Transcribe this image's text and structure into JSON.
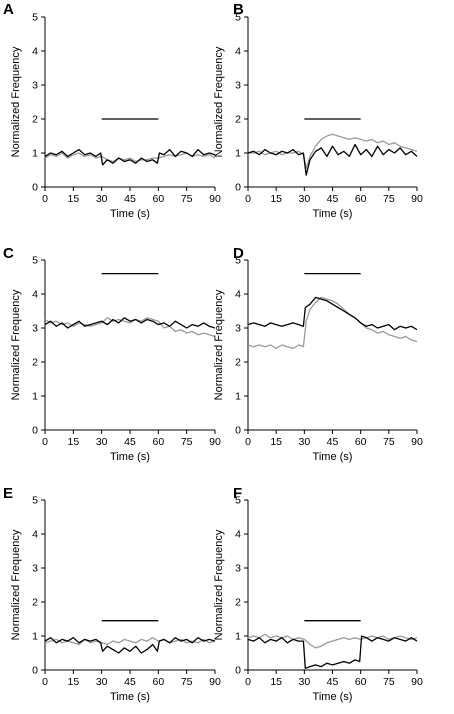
{
  "colors": {
    "black_trace": "#000000",
    "gray_trace": "#9a9a9a",
    "axis": "#000000"
  },
  "chart_data": [
    {
      "type": "line",
      "panel": "A",
      "xlabel": "Time (s)",
      "ylabel": "Normalized Frequency",
      "xlim": [
        0,
        90
      ],
      "ylim": [
        0,
        5
      ],
      "xticks": [
        "0",
        "15",
        "30",
        "45",
        "60",
        "75",
        "90"
      ],
      "yticks": [
        "0",
        "1",
        "2",
        "3",
        "4",
        "5"
      ],
      "stim_bar": {
        "x": [
          30,
          60
        ],
        "y": 2.0
      },
      "series": [
        {
          "color": "black",
          "x": [
            0,
            3,
            6,
            9,
            12,
            15,
            18,
            21,
            24,
            27,
            29.5,
            30.5,
            33,
            36,
            39,
            42,
            45,
            48,
            51,
            54,
            57,
            59.5,
            60.5,
            63,
            66,
            69,
            72,
            75,
            78,
            81,
            84,
            87,
            90
          ],
          "values": [
            0.9,
            1.0,
            0.95,
            1.05,
            0.9,
            1.0,
            1.1,
            0.95,
            1.0,
            0.9,
            1.0,
            0.65,
            0.8,
            0.7,
            0.85,
            0.75,
            0.8,
            0.7,
            0.85,
            0.75,
            0.8,
            0.7,
            1.0,
            0.95,
            1.1,
            0.9,
            1.05,
            1.0,
            0.9,
            1.1,
            0.95,
            1.0,
            0.95
          ]
        },
        {
          "color": "gray",
          "x": [
            0,
            3,
            6,
            9,
            12,
            15,
            18,
            21,
            24,
            27,
            30,
            33,
            36,
            39,
            42,
            45,
            48,
            51,
            54,
            57,
            60,
            63,
            66,
            69,
            72,
            75,
            78,
            81,
            84,
            87,
            90
          ],
          "values": [
            0.85,
            0.95,
            0.9,
            1.0,
            0.85,
            0.95,
            1.0,
            0.9,
            0.95,
            0.85,
            0.9,
            0.8,
            0.75,
            0.85,
            0.8,
            0.85,
            0.75,
            0.8,
            0.8,
            0.85,
            0.85,
            0.9,
            0.95,
            0.9,
            0.95,
            1.0,
            0.9,
            0.95,
            0.9,
            0.95,
            0.85
          ]
        }
      ]
    },
    {
      "type": "line",
      "panel": "B",
      "xlabel": "Time (s)",
      "ylabel": "Normalized Frequency",
      "xlim": [
        0,
        90
      ],
      "ylim": [
        0,
        5
      ],
      "xticks": [
        "0",
        "15",
        "30",
        "45",
        "60",
        "75",
        "90"
      ],
      "yticks": [
        "0",
        "1",
        "2",
        "3",
        "4",
        "5"
      ],
      "stim_bar": {
        "x": [
          30,
          60
        ],
        "y": 2.0
      },
      "series": [
        {
          "color": "black",
          "x": [
            0,
            3,
            6,
            9,
            12,
            15,
            18,
            21,
            24,
            27,
            29.5,
            31,
            33,
            36,
            39,
            42,
            45,
            48,
            51,
            54,
            57,
            60,
            63,
            66,
            69,
            72,
            75,
            78,
            81,
            84,
            87,
            90
          ],
          "values": [
            1.0,
            1.05,
            0.95,
            1.1,
            1.0,
            0.95,
            1.05,
            1.0,
            1.1,
            0.95,
            1.0,
            0.35,
            0.8,
            1.05,
            1.15,
            0.9,
            1.2,
            0.95,
            1.05,
            0.9,
            1.25,
            0.95,
            1.1,
            0.9,
            1.2,
            0.95,
            1.1,
            1.0,
            1.15,
            0.95,
            1.05,
            0.9
          ]
        },
        {
          "color": "gray",
          "x": [
            0,
            3,
            6,
            9,
            12,
            15,
            18,
            21,
            24,
            27,
            29.5,
            31,
            33,
            36,
            39,
            42,
            45,
            48,
            51,
            54,
            57,
            60,
            63,
            66,
            69,
            72,
            75,
            78,
            81,
            84,
            87,
            90
          ],
          "values": [
            1.0,
            1.0,
            1.05,
            0.95,
            1.0,
            1.05,
            0.95,
            1.0,
            1.0,
            1.05,
            0.95,
            0.55,
            0.9,
            1.2,
            1.4,
            1.5,
            1.55,
            1.5,
            1.45,
            1.4,
            1.45,
            1.4,
            1.35,
            1.4,
            1.3,
            1.35,
            1.25,
            1.3,
            1.2,
            1.15,
            1.1,
            1.05
          ]
        }
      ]
    },
    {
      "type": "line",
      "panel": "C",
      "xlabel": "Time (s)",
      "ylabel": "Normalized Frequency",
      "xlim": [
        0,
        90
      ],
      "ylim": [
        0,
        5
      ],
      "xticks": [
        "0",
        "15",
        "30",
        "45",
        "60",
        "75",
        "90"
      ],
      "yticks": [
        "0",
        "1",
        "2",
        "3",
        "4",
        "5"
      ],
      "stim_bar": {
        "x": [
          30,
          60
        ],
        "y": 4.6
      },
      "series": [
        {
          "color": "black",
          "x": [
            0,
            3,
            6,
            9,
            12,
            15,
            18,
            21,
            24,
            27,
            30,
            33,
            36,
            39,
            42,
            45,
            48,
            51,
            54,
            57,
            60,
            63,
            66,
            69,
            72,
            75,
            78,
            81,
            84,
            87,
            90
          ],
          "values": [
            3.1,
            3.2,
            3.05,
            3.15,
            3.0,
            3.1,
            3.2,
            3.05,
            3.1,
            3.15,
            3.2,
            3.1,
            3.25,
            3.15,
            3.3,
            3.2,
            3.25,
            3.15,
            3.25,
            3.2,
            3.1,
            3.15,
            3.05,
            3.2,
            3.1,
            3.0,
            3.1,
            3.05,
            3.15,
            3.05,
            3.0
          ]
        },
        {
          "color": "gray",
          "x": [
            0,
            3,
            6,
            9,
            12,
            15,
            18,
            21,
            24,
            27,
            30,
            33,
            36,
            39,
            42,
            45,
            48,
            51,
            54,
            57,
            60,
            63,
            66,
            69,
            72,
            75,
            78,
            81,
            84,
            87,
            90
          ],
          "values": [
            3.25,
            3.15,
            3.2,
            3.1,
            3.15,
            3.05,
            3.15,
            3.1,
            3.05,
            3.1,
            3.15,
            3.3,
            3.2,
            3.25,
            3.2,
            3.15,
            3.25,
            3.2,
            3.3,
            3.25,
            3.2,
            3.0,
            3.05,
            2.9,
            2.95,
            2.85,
            2.9,
            2.8,
            2.85,
            2.8,
            2.75
          ]
        }
      ]
    },
    {
      "type": "line",
      "panel": "D",
      "xlabel": "Time (s)",
      "ylabel": "Normalized Frequency",
      "xlim": [
        0,
        90
      ],
      "ylim": [
        0,
        5
      ],
      "xticks": [
        "0",
        "15",
        "30",
        "45",
        "60",
        "75",
        "90"
      ],
      "yticks": [
        "0",
        "1",
        "2",
        "3",
        "4",
        "5"
      ],
      "stim_bar": {
        "x": [
          30,
          60
        ],
        "y": 4.6
      },
      "series": [
        {
          "color": "black",
          "x": [
            0,
            3,
            6,
            9,
            12,
            15,
            18,
            21,
            24,
            27,
            29.5,
            30.5,
            33,
            36,
            39,
            42,
            45,
            48,
            51,
            54,
            57,
            60,
            63,
            66,
            69,
            72,
            75,
            78,
            81,
            84,
            87,
            90
          ],
          "values": [
            3.1,
            3.15,
            3.1,
            3.05,
            3.15,
            3.1,
            3.05,
            3.1,
            3.15,
            3.1,
            3.05,
            3.6,
            3.7,
            3.9,
            3.85,
            3.8,
            3.7,
            3.6,
            3.5,
            3.4,
            3.3,
            3.15,
            3.05,
            3.1,
            3.0,
            3.05,
            3.1,
            2.95,
            3.05,
            3.0,
            3.05,
            2.95
          ]
        },
        {
          "color": "gray",
          "x": [
            0,
            3,
            6,
            9,
            12,
            15,
            18,
            21,
            24,
            27,
            29.5,
            31,
            33,
            36,
            39,
            42,
            45,
            48,
            51,
            54,
            57,
            60,
            63,
            66,
            69,
            72,
            75,
            78,
            81,
            84,
            87,
            90
          ],
          "values": [
            2.5,
            2.45,
            2.5,
            2.45,
            2.5,
            2.4,
            2.5,
            2.45,
            2.4,
            2.5,
            2.45,
            3.2,
            3.55,
            3.75,
            3.9,
            3.85,
            3.8,
            3.7,
            3.55,
            3.4,
            3.3,
            3.15,
            3.0,
            2.95,
            2.85,
            2.9,
            2.8,
            2.75,
            2.7,
            2.75,
            2.65,
            2.6
          ]
        }
      ]
    },
    {
      "type": "line",
      "panel": "E",
      "xlabel": "Time (s)",
      "ylabel": "Normalized Frequency",
      "xlim": [
        0,
        90
      ],
      "ylim": [
        0,
        5
      ],
      "xticks": [
        "0",
        "15",
        "30",
        "45",
        "60",
        "75",
        "90"
      ],
      "yticks": [
        "0",
        "1",
        "2",
        "3",
        "4",
        "5"
      ],
      "stim_bar": {
        "x": [
          30,
          60
        ],
        "y": 1.45
      },
      "series": [
        {
          "color": "black",
          "x": [
            0,
            3,
            6,
            9,
            12,
            15,
            18,
            21,
            24,
            27,
            29.5,
            30.5,
            33,
            36,
            39,
            42,
            45,
            48,
            51,
            54,
            57,
            59.5,
            60.5,
            63,
            66,
            69,
            72,
            75,
            78,
            81,
            84,
            87,
            90
          ],
          "values": [
            0.85,
            0.95,
            0.8,
            0.9,
            0.85,
            0.95,
            0.8,
            0.9,
            0.85,
            0.9,
            0.8,
            0.55,
            0.7,
            0.6,
            0.5,
            0.65,
            0.55,
            0.7,
            0.5,
            0.6,
            0.75,
            0.55,
            0.85,
            0.9,
            0.8,
            0.95,
            0.85,
            0.9,
            0.8,
            0.95,
            0.85,
            0.9,
            0.85
          ]
        },
        {
          "color": "gray",
          "x": [
            0,
            3,
            6,
            9,
            12,
            15,
            18,
            21,
            24,
            27,
            30,
            33,
            36,
            39,
            42,
            45,
            48,
            51,
            54,
            57,
            60,
            63,
            66,
            69,
            72,
            75,
            78,
            81,
            84,
            87,
            90
          ],
          "values": [
            0.8,
            0.85,
            0.9,
            0.8,
            0.85,
            0.8,
            0.75,
            0.9,
            0.8,
            0.85,
            0.8,
            0.75,
            0.85,
            0.8,
            0.9,
            0.85,
            0.8,
            0.9,
            0.85,
            0.95,
            0.85,
            0.9,
            0.8,
            0.85,
            0.9,
            0.8,
            0.85,
            0.8,
            0.9,
            0.8,
            0.85
          ]
        }
      ]
    },
    {
      "type": "line",
      "panel": "F",
      "xlabel": "Time (s)",
      "ylabel": "Normalized Frequency",
      "xlim": [
        0,
        90
      ],
      "ylim": [
        0,
        5
      ],
      "xticks": [
        "0",
        "15",
        "30",
        "45",
        "60",
        "75",
        "90"
      ],
      "yticks": [
        "0",
        "1",
        "2",
        "3",
        "4",
        "5"
      ],
      "stim_bar": {
        "x": [
          30,
          60
        ],
        "y": 1.45
      },
      "series": [
        {
          "color": "black",
          "x": [
            0,
            3,
            6,
            9,
            12,
            15,
            18,
            21,
            24,
            27,
            29.5,
            30.5,
            33,
            36,
            39,
            42,
            45,
            48,
            51,
            54,
            57,
            59.5,
            60.5,
            63,
            66,
            69,
            72,
            75,
            78,
            81,
            84,
            87,
            90
          ],
          "values": [
            0.9,
            0.85,
            0.95,
            0.8,
            0.9,
            0.85,
            0.95,
            0.8,
            0.9,
            0.85,
            0.85,
            0.05,
            0.1,
            0.15,
            0.1,
            0.2,
            0.15,
            0.2,
            0.25,
            0.2,
            0.3,
            0.25,
            1.0,
            0.95,
            0.85,
            0.95,
            0.9,
            0.85,
            0.95,
            0.9,
            0.85,
            0.95,
            0.85
          ]
        },
        {
          "color": "gray",
          "x": [
            0,
            3,
            6,
            9,
            12,
            15,
            18,
            21,
            24,
            27,
            30,
            33,
            36,
            39,
            42,
            45,
            48,
            51,
            54,
            57,
            60,
            63,
            66,
            69,
            72,
            75,
            78,
            81,
            84,
            87,
            90
          ],
          "values": [
            0.95,
            1.0,
            0.95,
            1.05,
            0.95,
            1.0,
            0.95,
            1.0,
            0.9,
            0.95,
            0.9,
            0.75,
            0.65,
            0.7,
            0.8,
            0.85,
            0.9,
            0.95,
            0.9,
            0.95,
            0.9,
            0.95,
            1.0,
            0.95,
            1.0,
            0.9,
            0.95,
            1.0,
            0.95,
            0.9,
            0.95
          ]
        }
      ]
    }
  ]
}
